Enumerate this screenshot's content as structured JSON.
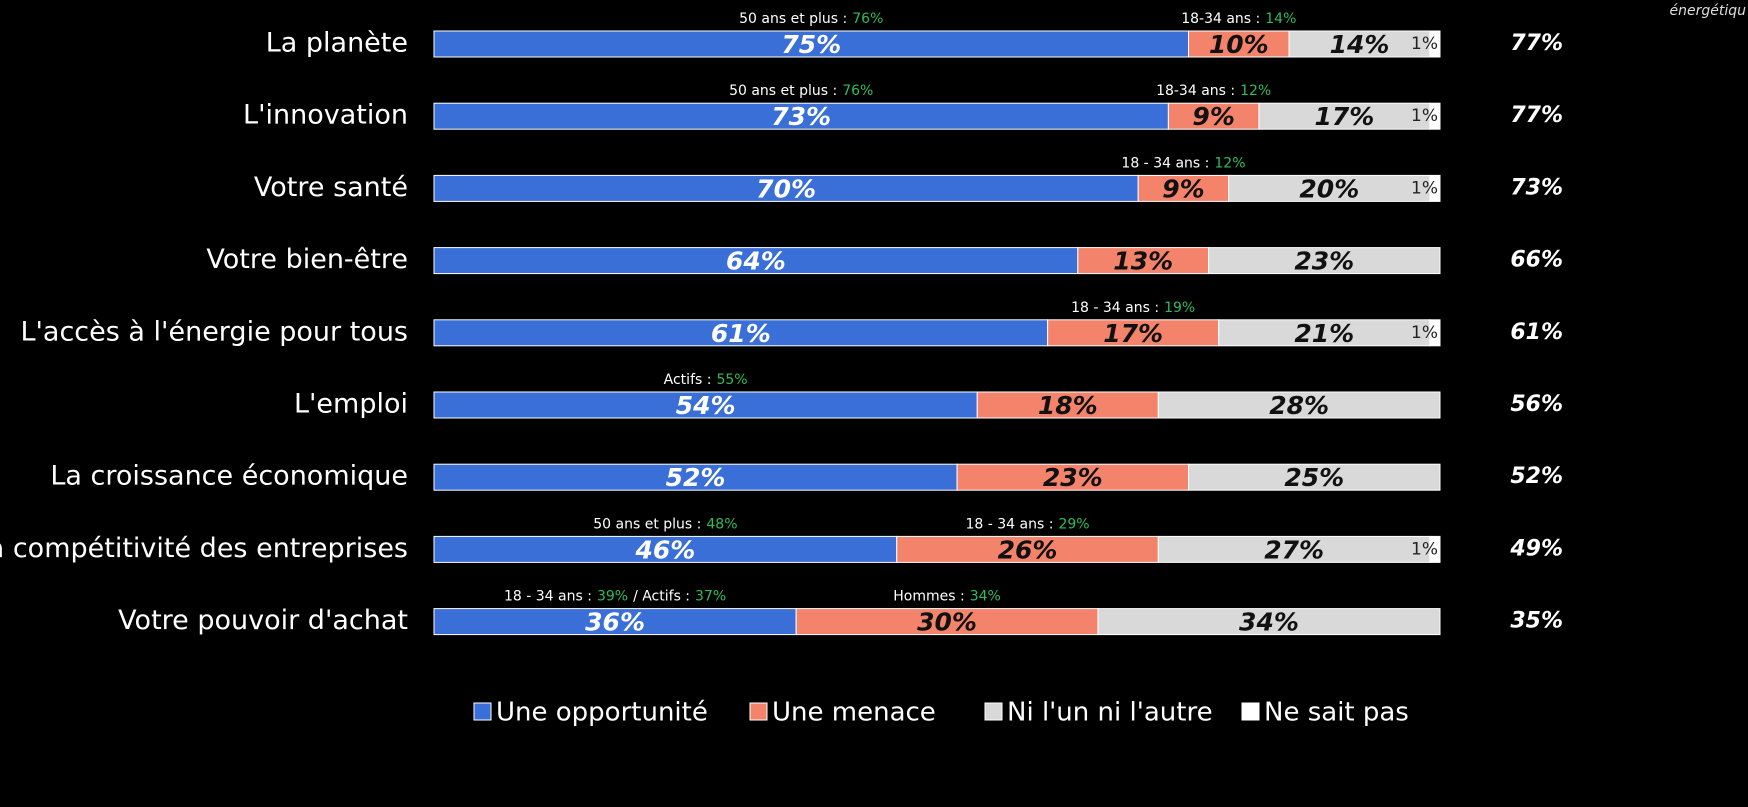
{
  "chart_data": {
    "type": "stacked-bar-horizontal",
    "categories": [
      "La planète",
      "L'innovation",
      "Votre santé",
      "Votre bien-être",
      "L'accès à l'énergie pour tous",
      "L'emploi",
      "La croissance économique",
      "La compétitivité des entreprises",
      "Votre pouvoir d'achat"
    ],
    "xlim": [
      0,
      100
    ],
    "series": [
      {
        "name": "Une opportunité",
        "color": "#3a6fd8",
        "values": [
          75,
          73,
          70,
          64,
          61,
          54,
          52,
          46,
          36
        ],
        "value_labels": [
          "75%",
          "73%",
          "70%",
          "64%",
          "61%",
          "54%",
          "52%",
          "46%",
          "36%"
        ],
        "annotations": [
          [
            {
              "label": "50 ans et plus :",
              "value": 76,
              "value_label": "76%"
            }
          ],
          [
            {
              "label": "50 ans et plus :",
              "value": 76,
              "value_label": "76%"
            }
          ],
          null,
          null,
          null,
          [
            {
              "label": "Actifs :",
              "value": 55,
              "value_label": "55%"
            }
          ],
          null,
          [
            {
              "label": "50 ans et plus :",
              "value": 48,
              "value_label": "48%"
            }
          ],
          [
            {
              "label": "18 - 34 ans :",
              "value": 39,
              "value_label": "39%"
            },
            {
              "label": "/ Actifs :",
              "value": 37,
              "value_label": "37%"
            }
          ]
        ]
      },
      {
        "name": "Une menace",
        "color": "#f4836b",
        "values": [
          10,
          9,
          9,
          13,
          17,
          18,
          23,
          26,
          30
        ],
        "value_labels": [
          "10%",
          "9%",
          "9%",
          "13%",
          "17%",
          "18%",
          "23%",
          "26%",
          "30%"
        ],
        "annotations": [
          [
            {
              "label": "18-34 ans :",
              "value": 14,
              "value_label": "14%"
            }
          ],
          [
            {
              "label": "18-34 ans :",
              "value": 12,
              "value_label": "12%"
            }
          ],
          [
            {
              "label": "18 - 34 ans :",
              "value": 12,
              "value_label": "12%"
            }
          ],
          null,
          [
            {
              "label": "18 - 34 ans :",
              "value": 19,
              "value_label": "19%"
            }
          ],
          null,
          null,
          [
            {
              "label": "18 - 34 ans :",
              "value": 29,
              "value_label": "29%"
            }
          ],
          [
            {
              "label": "Hommes :",
              "value": 34,
              "value_label": "34%"
            }
          ]
        ]
      },
      {
        "name": "Ni l'un ni l'autre",
        "color": "#d9d9d9",
        "values": [
          14,
          17,
          20,
          23,
          21,
          28,
          25,
          27,
          34
        ],
        "value_labels": [
          "14%",
          "17%",
          "20%",
          "23%",
          "21%",
          "28%",
          "25%",
          "27%",
          "34%"
        ]
      },
      {
        "name": "Ne sait pas",
        "color": "#ffffff",
        "values": [
          1,
          1,
          1,
          null,
          1,
          null,
          null,
          1,
          null
        ],
        "value_labels": [
          "1%",
          "1%",
          "1%",
          null,
          "1%",
          null,
          null,
          "1%",
          null
        ]
      }
    ],
    "totals": {
      "title": "énergétiqu",
      "values": [
        77,
        77,
        73,
        66,
        61,
        56,
        52,
        49,
        35
      ],
      "value_labels": [
        "77%",
        "77%",
        "73%",
        "66%",
        "61%",
        "56%",
        "52%",
        "49%",
        "35%"
      ]
    }
  }
}
